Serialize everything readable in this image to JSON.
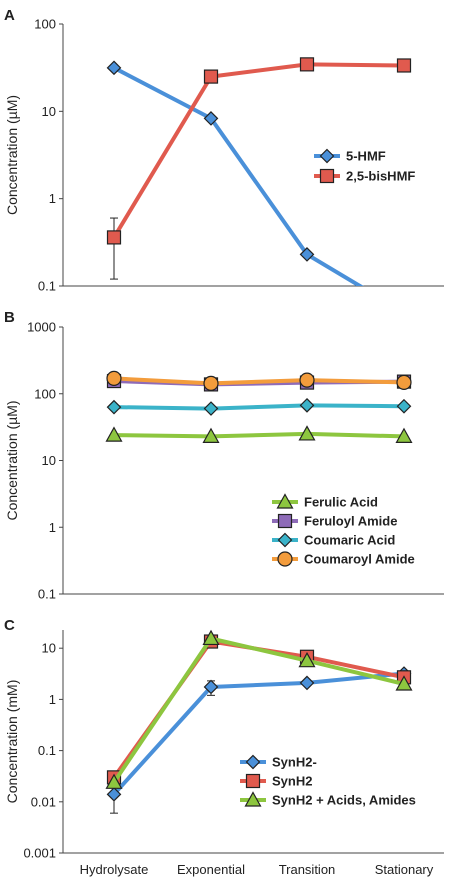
{
  "chart_data": [
    {
      "panel": "A",
      "type": "line",
      "title": "",
      "ylabel": "Concentration (µM)",
      "yscale": "log",
      "ylim": [
        0.1,
        100
      ],
      "yticks": [
        "0.1",
        "1",
        "10",
        "100"
      ],
      "categories": [
        "Hydrolysate",
        "Exponential",
        "Transition",
        "Stationary"
      ],
      "legend_position": "right-middle",
      "series": [
        {
          "name": "5-HMF",
          "marker": "diamond",
          "color": "#4a90d9",
          "values": [
            31.5,
            8.3,
            0.23,
            0.05
          ]
        },
        {
          "name": "2,5-bisHMF",
          "marker": "square",
          "color": "#e05a4e",
          "values": [
            0.36,
            25,
            34.5,
            33.5
          ],
          "error_low": [
            0.12,
            null,
            null,
            null
          ],
          "error_high": [
            0.6,
            null,
            null,
            null
          ]
        }
      ]
    },
    {
      "panel": "B",
      "type": "line",
      "title": "",
      "ylabel": "Concentration (µM)",
      "yscale": "log",
      "ylim": [
        0.1,
        1000
      ],
      "yticks": [
        "0.1",
        "1",
        "10",
        "100",
        "1000"
      ],
      "categories": [
        "Hydrolysate",
        "Exponential",
        "Transition",
        "Stationary"
      ],
      "legend_position": "bottom-right",
      "series": [
        {
          "name": "Ferulic Acid",
          "marker": "triangle",
          "color": "#8dc63f",
          "values": [
            24,
            23,
            25,
            23
          ]
        },
        {
          "name": "Feruloyl Amide",
          "marker": "square",
          "color": "#8e6bb8",
          "values": [
            155,
            138,
            147,
            152
          ]
        },
        {
          "name": "Coumaric Acid",
          "marker": "diamond",
          "color": "#3bb3c9",
          "values": [
            63,
            60,
            67,
            65
          ]
        },
        {
          "name": "Coumaroyl Amide",
          "marker": "circle",
          "color": "#f39c3c",
          "values": [
            170,
            143,
            160,
            148
          ]
        }
      ]
    },
    {
      "panel": "C",
      "type": "line",
      "title": "",
      "ylabel": "Concentration (mM)",
      "yscale": "log",
      "ylim": [
        0.001,
        40
      ],
      "yticks": [
        "0.001",
        "0.01",
        "0.1",
        "1",
        "10"
      ],
      "categories": [
        "Hydrolysate",
        "Exponential",
        "Transition",
        "Stationary"
      ],
      "legend_position": "bottom-right",
      "series": [
        {
          "name": "SynH2-",
          "marker": "diamond",
          "color": "#4a90d9",
          "values": [
            0.014,
            1.75,
            2.1,
            3.2
          ],
          "error_low": [
            0.006,
            1.2,
            null,
            null
          ],
          "error_high": [
            0.022,
            2.3,
            null,
            null
          ]
        },
        {
          "name": "SynH2",
          "marker": "square",
          "color": "#e05a4e",
          "values": [
            0.03,
            13.5,
            6.8,
            2.7
          ]
        },
        {
          "name": "SynH2 + Acids, Amides",
          "marker": "triangle",
          "color": "#8dc63f",
          "values": [
            0.024,
            15.5,
            5.7,
            2.0
          ]
        }
      ]
    }
  ]
}
